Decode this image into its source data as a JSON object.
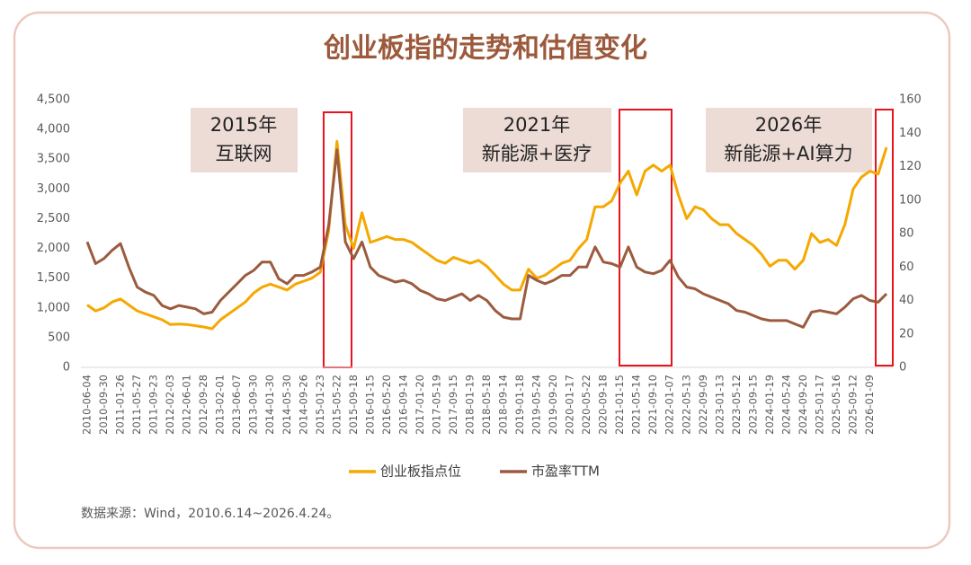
{
  "chart_data": {
    "type": "line",
    "title": "创业板指的走势和估值变化",
    "categories": [
      "2010-06-04",
      null,
      "2010-09-30",
      null,
      "2011-01-26",
      null,
      "2011-05-27",
      null,
      "2011-09-23",
      null,
      "2012-02-03",
      null,
      "2012-06-01",
      null,
      "2012-09-28",
      null,
      "2013-02-01",
      null,
      "2013-06-07",
      null,
      "2013-09-30",
      null,
      "2014-01-30",
      null,
      "2014-05-30",
      null,
      "2014-09-26",
      null,
      "2015-01-23",
      null,
      "2015-05-22",
      null,
      "2015-09-18",
      null,
      "2016-01-15",
      null,
      "2016-05-20",
      null,
      "2016-09-14",
      null,
      "2017-01-20",
      null,
      "2017-05-19",
      null,
      "2017-09-15",
      null,
      "2018-01-19",
      null,
      "2018-05-18",
      null,
      "2018-09-14",
      null,
      "2019-01-18",
      null,
      "2019-05-24",
      null,
      "2019-09-20",
      null,
      "2020-01-17",
      null,
      "2020-05-22",
      null,
      "2020-09-18",
      null,
      "2021-01-15",
      null,
      "2021-05-14",
      null,
      "2021-09-10",
      null,
      "2022-01-07",
      null,
      "2022-05-13",
      null,
      "2022-09-09",
      null,
      "2023-01-13",
      null,
      "2023-05-12",
      null,
      "2023-09-15",
      null,
      "2024-01-19",
      null,
      "2024-05-24",
      null,
      "2024-09-20",
      null,
      "2025-01-17",
      null,
      "2025-05-16",
      null,
      "2025-09-12",
      null,
      "2026-01-09",
      null,
      null
    ],
    "series": [
      {
        "name": "创业板指点位",
        "color": "#f5a800",
        "values": [
          1050,
          950,
          1000,
          1100,
          1150,
          1050,
          950,
          900,
          850,
          800,
          720,
          730,
          720,
          700,
          680,
          650,
          800,
          900,
          1000,
          1100,
          1250,
          1350,
          1400,
          1350,
          1300,
          1400,
          1450,
          1500,
          1600,
          2300,
          3800,
          2400,
          2000,
          2600,
          2100,
          2150,
          2200,
          2150,
          2150,
          2100,
          2000,
          1900,
          1800,
          1750,
          1850,
          1800,
          1750,
          1800,
          1700,
          1550,
          1400,
          1300,
          1300,
          1650,
          1500,
          1550,
          1650,
          1750,
          1800,
          2000,
          2150,
          2700,
          2700,
          2800,
          3100,
          3300,
          2900,
          3300,
          3400,
          3300,
          3400,
          2900,
          2500,
          2700,
          2650,
          2500,
          2400,
          2400,
          2250,
          2150,
          2050,
          1900,
          1700,
          1800,
          1800,
          1650,
          1800,
          2250,
          2100,
          2150,
          2050,
          2400,
          3000,
          3200,
          3300,
          3250,
          3700
        ]
      },
      {
        "name": "市盈率TTM",
        "color": "#9b5b3f",
        "axis": "y2",
        "values": [
          75,
          62,
          65,
          70,
          74,
          60,
          48,
          45,
          43,
          37,
          35,
          37,
          36,
          35,
          32,
          33,
          40,
          45,
          50,
          55,
          58,
          63,
          63,
          53,
          50,
          55,
          55,
          57,
          60,
          85,
          130,
          75,
          65,
          75,
          60,
          55,
          53,
          51,
          52,
          50,
          46,
          44,
          41,
          40,
          42,
          44,
          40,
          43,
          40,
          34,
          30,
          29,
          29,
          55,
          52,
          50,
          52,
          55,
          55,
          60,
          60,
          72,
          63,
          62,
          60,
          72,
          60,
          57,
          56,
          58,
          64,
          54,
          48,
          47,
          44,
          42,
          40,
          38,
          34,
          33,
          31,
          29,
          28,
          28,
          28,
          26,
          24,
          33,
          34,
          33,
          32,
          36,
          41,
          43,
          40,
          39,
          44
        ]
      }
    ],
    "ylim": [
      0,
      4500
    ],
    "yticks": [
      0,
      500,
      {
        "value": 1000,
        "label": "1,000"
      },
      {
        "value": 1500,
        "label": "1,500"
      },
      {
        "value": 2000,
        "label": "2,000"
      },
      {
        "value": 2500,
        "label": "2,500"
      },
      {
        "value": 3000,
        "label": "3,000"
      },
      {
        "value": 3500,
        "label": "3,500"
      },
      {
        "value": 4000,
        "label": "4,000"
      },
      {
        "value": 4500,
        "label": "4,500"
      }
    ],
    "y2lim": [
      0,
      160
    ],
    "y2ticks": [
      0,
      20,
      40,
      60,
      80,
      100,
      120,
      140,
      160
    ],
    "annotations": [
      {
        "lines": [
          "2015年",
          "互联网"
        ]
      },
      {
        "lines": [
          "2021年",
          "新能源+医疗"
        ]
      },
      {
        "lines": [
          "2026年",
          "新能源+AI算力"
        ]
      }
    ],
    "source": "数据来源：Wind，2010.6.14~2026.4.24。",
    "legend": "bottom"
  }
}
